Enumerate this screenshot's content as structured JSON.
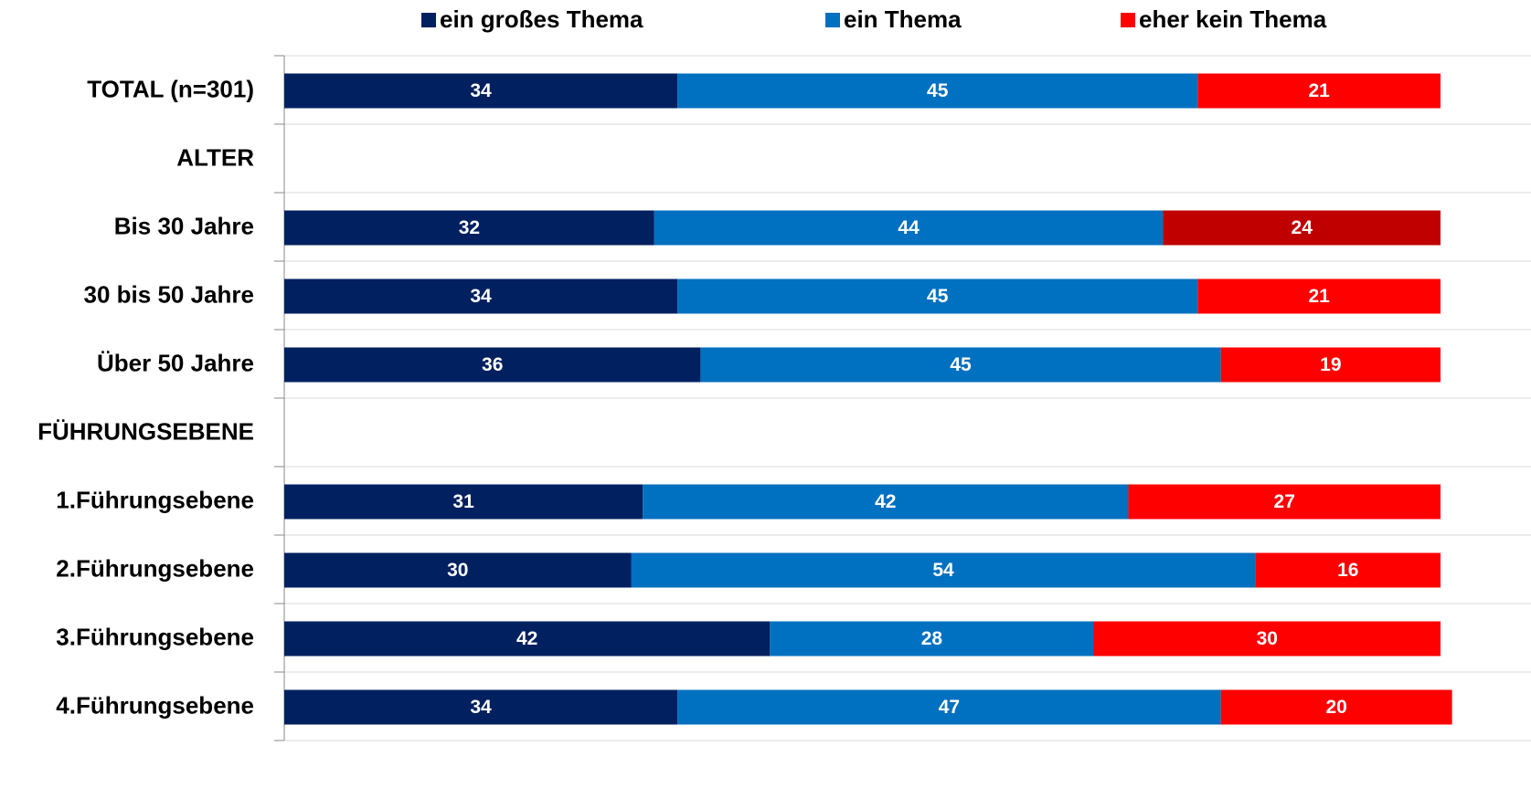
{
  "chart_data": {
    "type": "stacked-bar-horizontal",
    "categories": [
      "TOTAL (n=301)",
      "ALTER",
      "Bis 30 Jahre",
      "30 bis 50 Jahre",
      "Über 50 Jahre",
      "FÜHRUNGSEBENE",
      "1.Führungsebene",
      "2.Führungsebene",
      "3.Führungsebene",
      "4.Führungsebene"
    ],
    "series": [
      {
        "name": "ein großes Thema",
        "color": "#002060",
        "values": [
          34,
          null,
          32,
          34,
          36,
          null,
          31,
          30,
          42,
          34
        ]
      },
      {
        "name": "ein Thema",
        "color": "#0070c0",
        "values": [
          45,
          null,
          44,
          45,
          45,
          null,
          42,
          54,
          28,
          47
        ]
      },
      {
        "name": "eher kein Thema",
        "color": "#ff0000",
        "values": [
          21,
          null,
          24,
          21,
          19,
          null,
          27,
          16,
          30,
          20
        ],
        "point_colors": [
          "#ff0000",
          null,
          "#c00000",
          "#ff0000",
          "#ff0000",
          null,
          "#ff0000",
          "#ff0000",
          "#ff0000",
          "#ff0000"
        ]
      }
    ],
    "xlim": [
      0,
      100
    ],
    "legend": "top"
  }
}
